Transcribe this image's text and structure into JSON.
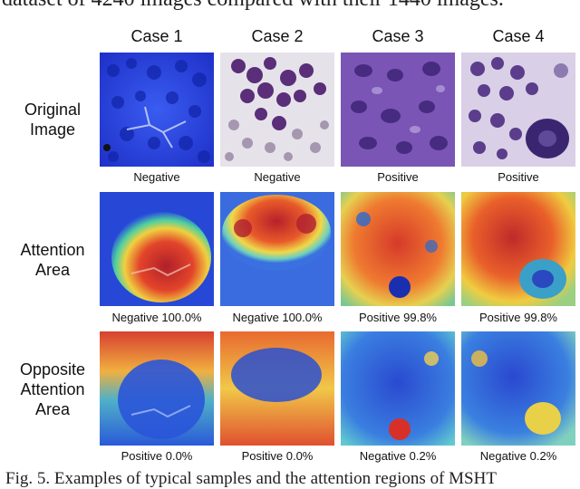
{
  "top_text": "dataset of 4240 images compared with their 1440 images.",
  "columns": [
    "Case 1",
    "Case 2",
    "Case 3",
    "Case 4"
  ],
  "rows": [
    {
      "label_lines": [
        "Original",
        "Image"
      ],
      "captions": [
        "Negative",
        "Negative",
        "Positive",
        "Positive"
      ]
    },
    {
      "label_lines": [
        "Attention",
        "Area"
      ],
      "captions": [
        "Negative 100.0%",
        "Negative 100.0%",
        "Positive 99.8%",
        "Positive 99.8%"
      ]
    },
    {
      "label_lines": [
        "Opposite",
        "Attention",
        "Area"
      ],
      "captions": [
        "Positive 0.0%",
        "Positive 0.0%",
        "Negative 0.2%",
        "Negative 0.2%"
      ]
    }
  ],
  "figure_caption": "Fig. 5. Examples of typical samples and the attention regions of MSHT"
}
